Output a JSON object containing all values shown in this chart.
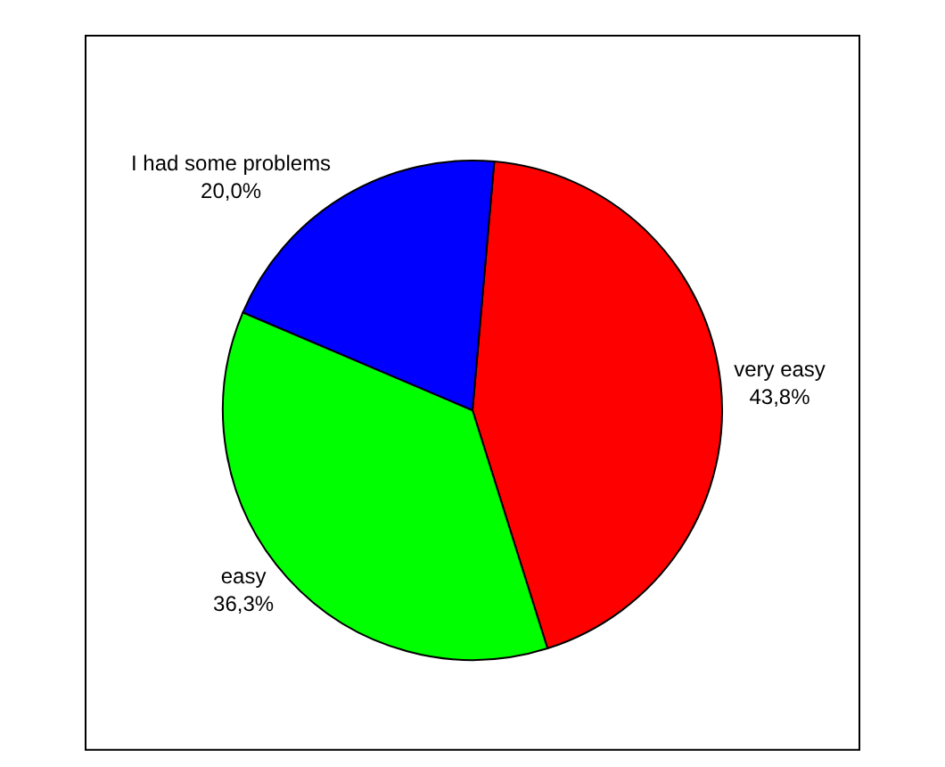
{
  "chart_data": {
    "type": "pie",
    "categories": [
      "very easy",
      "easy",
      "I had some problems"
    ],
    "values": [
      43.8,
      36.3,
      20.0
    ],
    "colors": [
      "#ff0000",
      "#00ff00",
      "#0000ff"
    ],
    "value_labels": [
      "43,8%",
      "36,3%",
      "20,0%"
    ],
    "legend": false
  }
}
